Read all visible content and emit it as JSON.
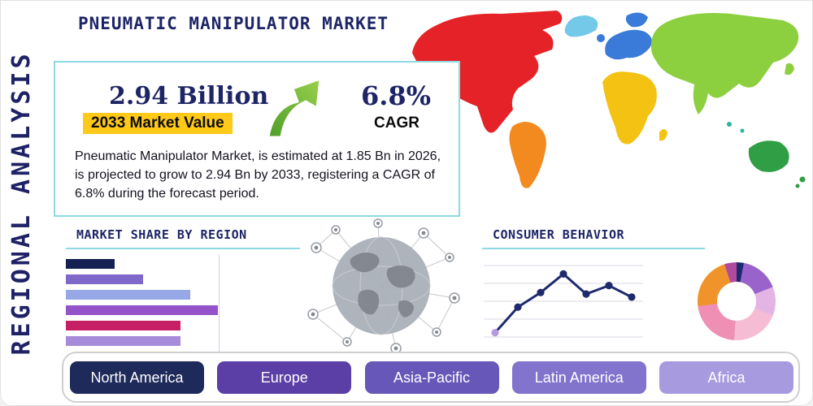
{
  "page": {
    "vertical_title": "REGIONAL ANALYSIS",
    "title": "PNEUMATIC MANIPULATOR MARKET"
  },
  "colors": {
    "navy": "#1e2566",
    "accent_teal": "#8ed9e0",
    "highlight_yellow": "#ffc91a",
    "arrow_green": "#5aa82e"
  },
  "stats": {
    "market_value": "2.94 Billion",
    "market_value_label": "2033 Market Value",
    "cagr_value": "6.8%",
    "cagr_label": "CAGR",
    "description": "Pneumatic Manipulator Market, is estimated at 1.85 Bn in 2026, is projected to grow to 2.94 Bn by 2033, registering a CAGR of 6.8% during the forecast period."
  },
  "sections": {
    "market_share": {
      "title": "MARKET SHARE BY REGION"
    },
    "consumer_behavior": {
      "title": "CONSUMER BEHAVIOR"
    }
  },
  "regions": [
    {
      "label": "North America",
      "color": "#1e2a5a"
    },
    {
      "label": "Europe",
      "color": "#5b3ea6"
    },
    {
      "label": "Asia-Pacific",
      "color": "#6657b8"
    },
    {
      "label": "Latin America",
      "color": "#8273cc"
    },
    {
      "label": "Africa",
      "color": "#a79ade"
    }
  ],
  "map_regions": [
    {
      "name": "North America",
      "color": "#e42227"
    },
    {
      "name": "Greenland",
      "color": "#74c9e8"
    },
    {
      "name": "South America",
      "color": "#f28a20"
    },
    {
      "name": "Europe",
      "color": "#3a7ad8"
    },
    {
      "name": "Africa",
      "color": "#f4c212"
    },
    {
      "name": "Asia",
      "color": "#8ccf3f"
    },
    {
      "name": "Australia",
      "color": "#2f9e44"
    }
  ],
  "chart_data": [
    {
      "type": "bar",
      "orientation": "horizontal",
      "title": "MARKET SHARE BY REGION",
      "categories": [
        "",
        "",
        "",
        "",
        "",
        ""
      ],
      "values": [
        21,
        33,
        53,
        65,
        49,
        49
      ],
      "colors": [
        "#141f52",
        "#7f68c9",
        "#96a9e6",
        "#9553c9",
        "#c71f66",
        "#a58bd9"
      ],
      "xlabel": "",
      "ylabel": "",
      "xlim": [
        0,
        100
      ],
      "grid": "single-vertical-line"
    },
    {
      "type": "line",
      "title": "CONSUMER BEHAVIOR",
      "x": [
        1,
        2,
        3,
        4,
        5,
        6,
        7
      ],
      "values": [
        12,
        45,
        64,
        88,
        62,
        73,
        58
      ],
      "color": "#1f2a6e",
      "first_point_color": "#b49be0",
      "grid": "horizontal",
      "ylim": [
        0,
        100
      ]
    },
    {
      "type": "pie",
      "title": "Regional share donut",
      "inner_radius_ratio": 0.5,
      "slices": [
        {
          "value": 3,
          "color": "#1f2a6e"
        },
        {
          "value": 16,
          "color": "#9a63cc"
        },
        {
          "value": 12,
          "color": "#e3b4e4"
        },
        {
          "value": 20,
          "color": "#f6bcd4"
        },
        {
          "value": 22,
          "color": "#ef8fb4"
        },
        {
          "value": 22,
          "color": "#f0932b"
        },
        {
          "value": 5,
          "color": "#b04a9e"
        }
      ]
    }
  ]
}
